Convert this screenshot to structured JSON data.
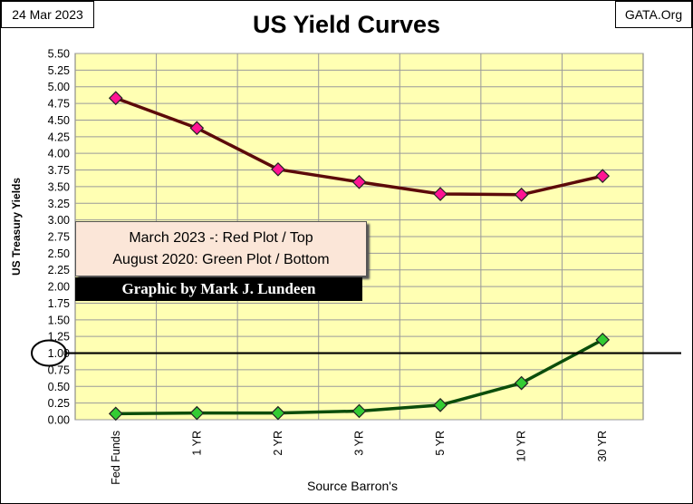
{
  "header": {
    "date": "24 Mar 2023",
    "source": "GATA.Org",
    "title": "US Yield Curves"
  },
  "legend": {
    "line1": "March 2023 -: Red Plot / Top",
    "line2": "August 2020: Green Plot / Bottom",
    "credit": "Graphic by Mark J. Lundeen"
  },
  "colors": {
    "plot_bg": "#ffffb3",
    "red_line": "#5c0a0a",
    "red_marker": "#ff1493",
    "green_line": "#0b4d0b",
    "green_marker": "#33cc33",
    "reference_line": "#000000"
  },
  "chart_data": {
    "type": "line",
    "title": "US Yield Curves",
    "xlabel": "Source Barron's",
    "ylabel": "US Treasury Yields",
    "categories": [
      "Fed Funds",
      "1 YR",
      "2 YR",
      "3 YR",
      "5 YR",
      "10 YR",
      "30 YR"
    ],
    "ylim": [
      0,
      5.5
    ],
    "yticks": [
      "0.00",
      "0.25",
      "0.50",
      "0.75",
      "1.00",
      "1.25",
      "1.50",
      "1.75",
      "2.00",
      "2.25",
      "2.50",
      "2.75",
      "3.00",
      "3.25",
      "3.50",
      "3.75",
      "4.00",
      "4.25",
      "4.50",
      "4.75",
      "5.00",
      "5.25",
      "5.50"
    ],
    "grid": true,
    "reference_line": 1.0,
    "series": [
      {
        "key": "march2023",
        "values": [
          4.83,
          4.38,
          3.76,
          3.57,
          3.39,
          3.38,
          3.66
        ]
      },
      {
        "key": "august2020",
        "values": [
          0.09,
          0.1,
          0.1,
          0.13,
          0.22,
          0.55,
          1.2
        ]
      }
    ]
  }
}
